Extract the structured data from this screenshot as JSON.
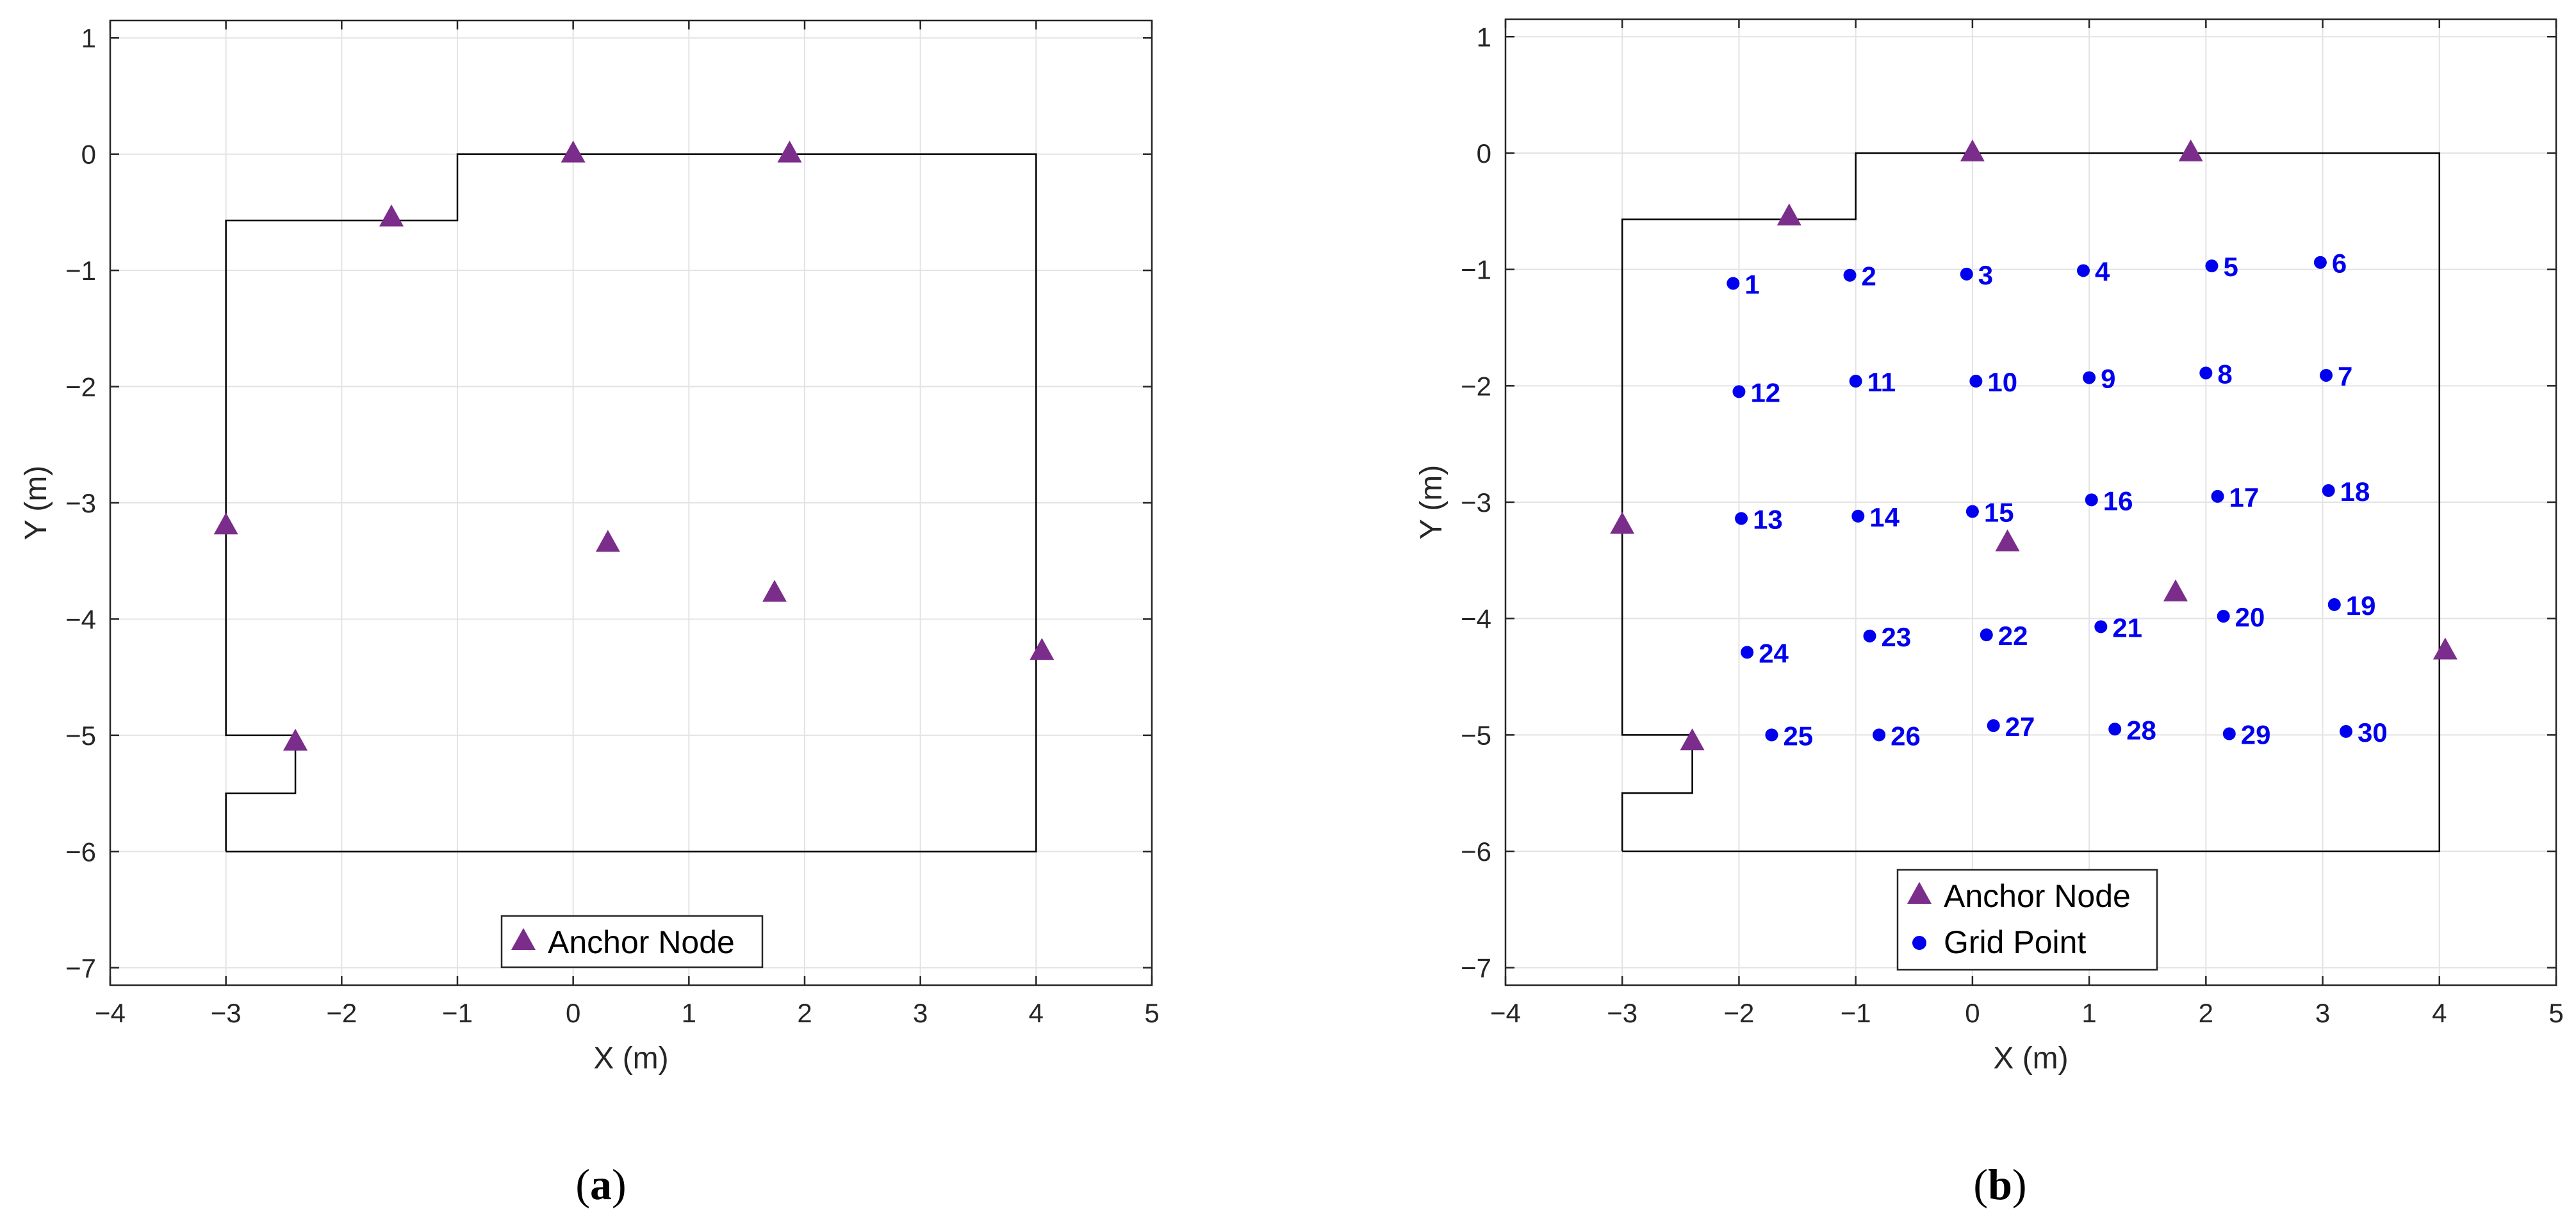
{
  "figure": {
    "colors": {
      "anchor": "#7b2d8b",
      "grid_point": "#0000ee",
      "wall": "#000000",
      "gridline": "#e3e3e3",
      "axes": "#262626"
    }
  },
  "chart_data": [
    {
      "type": "scatter",
      "caption_letter": "a",
      "xlabel": "X (m)",
      "ylabel": "Y (m)",
      "xlim": [
        -4,
        5
      ],
      "ylim": [
        -7.15,
        1.15
      ],
      "xticks": [
        -4,
        -3,
        -2,
        -1,
        0,
        1,
        2,
        3,
        4,
        5
      ],
      "yticks": [
        1,
        0,
        -1,
        -2,
        -3,
        -4,
        -5,
        -6,
        -7
      ],
      "grid": true,
      "legend_position": "bottom-center",
      "outline": [
        [
          -3,
          -6
        ],
        [
          4,
          -6
        ],
        [
          4,
          0
        ],
        [
          -1,
          0
        ],
        [
          -1,
          -0.57
        ],
        [
          -3,
          -0.57
        ],
        [
          -3,
          -5
        ],
        [
          -2.4,
          -5
        ],
        [
          -2.4,
          -5.5
        ],
        [
          -3,
          -5.5
        ],
        [
          -3,
          -6
        ]
      ],
      "series": [
        {
          "name": "Anchor Node",
          "marker": "triangle",
          "points": [
            [
              -1.57,
              -0.55
            ],
            [
              0,
              0
            ],
            [
              1.87,
              0
            ],
            [
              -3,
              -3.2
            ],
            [
              0.3,
              -3.35
            ],
            [
              1.74,
              -3.78
            ],
            [
              4.05,
              -4.28
            ],
            [
              -2.4,
              -5.06
            ]
          ]
        }
      ]
    },
    {
      "type": "scatter",
      "caption_letter": "b",
      "xlabel": "X (m)",
      "ylabel": "Y (m)",
      "xlim": [
        -4,
        5
      ],
      "ylim": [
        -7.15,
        1.15
      ],
      "xticks": [
        -4,
        -3,
        -2,
        -1,
        0,
        1,
        2,
        3,
        4,
        5
      ],
      "yticks": [
        1,
        0,
        -1,
        -2,
        -3,
        -4,
        -5,
        -6,
        -7
      ],
      "grid": true,
      "legend_position": "bottom-left",
      "outline": [
        [
          -3,
          -6
        ],
        [
          4,
          -6
        ],
        [
          4,
          0
        ],
        [
          -1,
          0
        ],
        [
          -1,
          -0.57
        ],
        [
          -3,
          -0.57
        ],
        [
          -3,
          -5
        ],
        [
          -2.4,
          -5
        ],
        [
          -2.4,
          -5.5
        ],
        [
          -3,
          -5.5
        ],
        [
          -3,
          -6
        ]
      ],
      "series": [
        {
          "name": "Anchor Node",
          "marker": "triangle",
          "points": [
            [
              -1.57,
              -0.55
            ],
            [
              0,
              0
            ],
            [
              1.87,
              0
            ],
            [
              -3,
              -3.2
            ],
            [
              0.3,
              -3.35
            ],
            [
              1.74,
              -3.78
            ],
            [
              4.05,
              -4.28
            ],
            [
              -2.4,
              -5.06
            ]
          ]
        },
        {
          "name": "Grid Point",
          "marker": "dot",
          "points": [
            {
              "label": "1",
              "x": -2.05,
              "y": -1.12
            },
            {
              "label": "2",
              "x": -1.05,
              "y": -1.05
            },
            {
              "label": "3",
              "x": -0.05,
              "y": -1.04
            },
            {
              "label": "4",
              "x": 0.95,
              "y": -1.01
            },
            {
              "label": "5",
              "x": 2.05,
              "y": -0.97
            },
            {
              "label": "6",
              "x": 2.98,
              "y": -0.94
            },
            {
              "label": "7",
              "x": 3.03,
              "y": -1.91
            },
            {
              "label": "8",
              "x": 2.0,
              "y": -1.89
            },
            {
              "label": "9",
              "x": 1.0,
              "y": -1.93
            },
            {
              "label": "10",
              "x": 0.03,
              "y": -1.96
            },
            {
              "label": "11",
              "x": -1.0,
              "y": -1.96
            },
            {
              "label": "12",
              "x": -2.0,
              "y": -2.05
            },
            {
              "label": "13",
              "x": -1.98,
              "y": -3.14
            },
            {
              "label": "14",
              "x": -0.98,
              "y": -3.12
            },
            {
              "label": "15",
              "x": 0.0,
              "y": -3.08
            },
            {
              "label": "16",
              "x": 1.02,
              "y": -2.98
            },
            {
              "label": "17",
              "x": 2.1,
              "y": -2.95
            },
            {
              "label": "18",
              "x": 3.05,
              "y": -2.9
            },
            {
              "label": "19",
              "x": 3.1,
              "y": -3.88
            },
            {
              "label": "20",
              "x": 2.15,
              "y": -3.98
            },
            {
              "label": "21",
              "x": 1.1,
              "y": -4.07
            },
            {
              "label": "22",
              "x": 0.12,
              "y": -4.14
            },
            {
              "label": "23",
              "x": -0.88,
              "y": -4.15
            },
            {
              "label": "24",
              "x": -1.93,
              "y": -4.29
            },
            {
              "label": "25",
              "x": -1.72,
              "y": -5.0
            },
            {
              "label": "26",
              "x": -0.8,
              "y": -5.0
            },
            {
              "label": "27",
              "x": 0.18,
              "y": -4.92
            },
            {
              "label": "28",
              "x": 1.22,
              "y": -4.95
            },
            {
              "label": "29",
              "x": 2.2,
              "y": -4.99
            },
            {
              "label": "30",
              "x": 3.2,
              "y": -4.97
            }
          ]
        }
      ]
    }
  ]
}
